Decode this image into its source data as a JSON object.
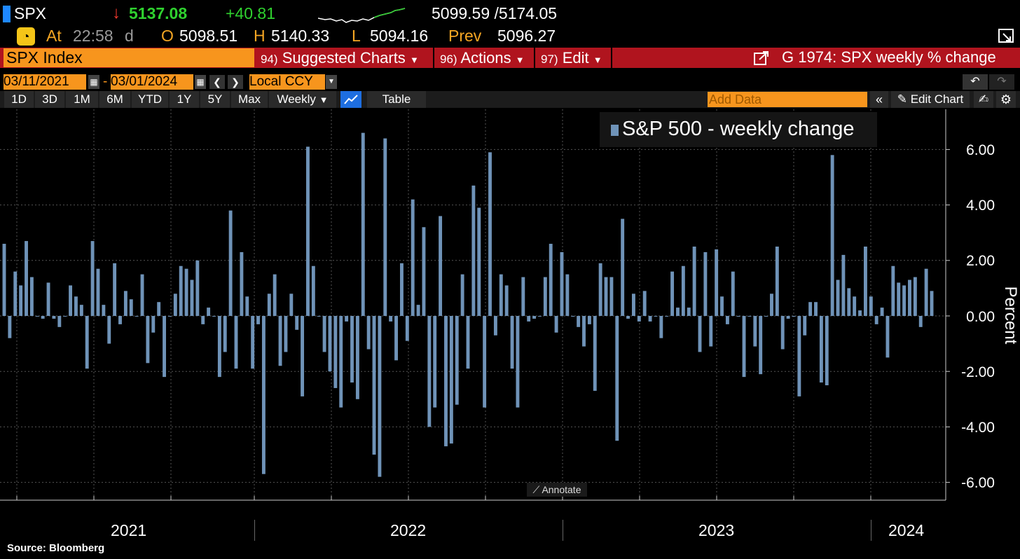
{
  "colors": {
    "bar": "#6f93b8",
    "accent_orange": "#f7951d",
    "accent_red": "#b0141e",
    "up_green": "#2fd12f",
    "down_red": "#ff3b30"
  },
  "quote": {
    "ticker": "SPX",
    "last": "5137.08",
    "change": "+40.81",
    "range": "5099.59 /5174.05",
    "at_label": "At",
    "time": "22:58",
    "time_suffix": "d",
    "open_label": "O",
    "open": "5098.51",
    "high_label": "H",
    "high": "5140.33",
    "low_label": "L",
    "low": "5094.16",
    "prev_label": "Prev",
    "prev": "5096.27"
  },
  "menu": {
    "security": "SPX Index",
    "suggested_num": "94)",
    "suggested": "Suggested Charts",
    "actions_num": "96)",
    "actions": "Actions",
    "edit_num": "97)",
    "edit": "Edit",
    "chart_title": "G 1974: SPX weekly % change"
  },
  "dates": {
    "start": "03/11/2021",
    "end": "03/01/2024",
    "currency": "Local CCY"
  },
  "toolbar": {
    "periods": [
      "1D",
      "3D",
      "1M",
      "6M",
      "YTD",
      "1Y",
      "5Y",
      "Max"
    ],
    "frequency": "Weekly",
    "table": "Table",
    "add_data_placeholder": "Add Data",
    "edit_chart": "Edit Chart"
  },
  "annotate": "Annotate",
  "source": "Source:  Bloomberg",
  "chart_data": {
    "type": "bar",
    "title": "",
    "legend": "S&P 500 - weekly change",
    "ylabel": "Percent",
    "ylim": [
      -6.6,
      7.1
    ],
    "yticks": [
      "-6.00",
      "-4.00",
      "-2.00",
      "0.00",
      "2.00",
      "4.00",
      "6.00"
    ],
    "ytick_values": [
      -6,
      -4,
      -2,
      0,
      2,
      4,
      6
    ],
    "x_labels": [
      "2021",
      "2022",
      "2023",
      "2024"
    ],
    "x_start": "2021-03-12",
    "frequency": "weekly",
    "values": [
      2.6,
      -0.8,
      1.6,
      1.1,
      2.7,
      1.4,
      0.0,
      -0.1,
      1.2,
      -0.1,
      -0.4,
      0.0,
      1.1,
      0.7,
      0.4,
      -1.9,
      2.7,
      1.7,
      0.4,
      -1.0,
      1.9,
      -0.3,
      0.9,
      0.6,
      0.0,
      1.5,
      -1.7,
      -0.6,
      0.5,
      -2.2,
      0.0,
      0.8,
      1.8,
      1.7,
      1.3,
      2.0,
      -0.3,
      0.3,
      0.0,
      -2.2,
      -1.3,
      3.8,
      -1.9,
      2.3,
      0.7,
      -1.9,
      -0.3,
      -5.7,
      0.8,
      1.5,
      -1.8,
      -1.3,
      0.8,
      -0.5,
      -2.9,
      6.1,
      1.8,
      0.0,
      -1.3,
      -2.0,
      -2.6,
      -3.3,
      -0.2,
      -2.4,
      -3.0,
      6.6,
      -1.2,
      -5.0,
      -5.8,
      6.4,
      -0.2,
      -1.6,
      1.9,
      -0.9,
      4.2,
      0.4,
      3.2,
      -4.0,
      -3.3,
      3.6,
      -4.7,
      -4.6,
      -3.2,
      1.5,
      -1.9,
      4.7,
      3.9,
      -3.3,
      5.9,
      -0.7,
      1.5,
      1.1,
      -1.9,
      -3.3,
      1.4,
      -0.2,
      -0.1,
      0.0,
      1.4,
      2.6,
      -0.6,
      2.3,
      1.5,
      0.0,
      -0.4,
      -1.1,
      -0.3,
      -2.7,
      1.9,
      1.4,
      1.4,
      -4.5,
      3.5,
      -0.1,
      0.8,
      -0.2,
      0.9,
      -0.2,
      0.0,
      -0.8,
      0.0,
      1.6,
      0.3,
      1.8,
      0.3,
      2.5,
      -1.3,
      2.3,
      -1.1,
      2.4,
      0.7,
      -0.3,
      1.6,
      0.0,
      -2.2,
      0.0,
      -1.1,
      -2.1,
      0.0,
      0.8,
      2.5,
      -1.2,
      -0.1,
      0.0,
      -2.9,
      -0.7,
      0.5,
      0.5,
      -2.4,
      -2.5,
      5.8,
      1.3,
      2.2,
      1.0,
      0.7,
      0.2,
      2.5,
      0.7,
      -0.3,
      0.3,
      -1.5,
      1.8,
      1.2,
      1.1,
      1.3,
      1.4,
      -0.4,
      1.7,
      0.9
    ]
  }
}
